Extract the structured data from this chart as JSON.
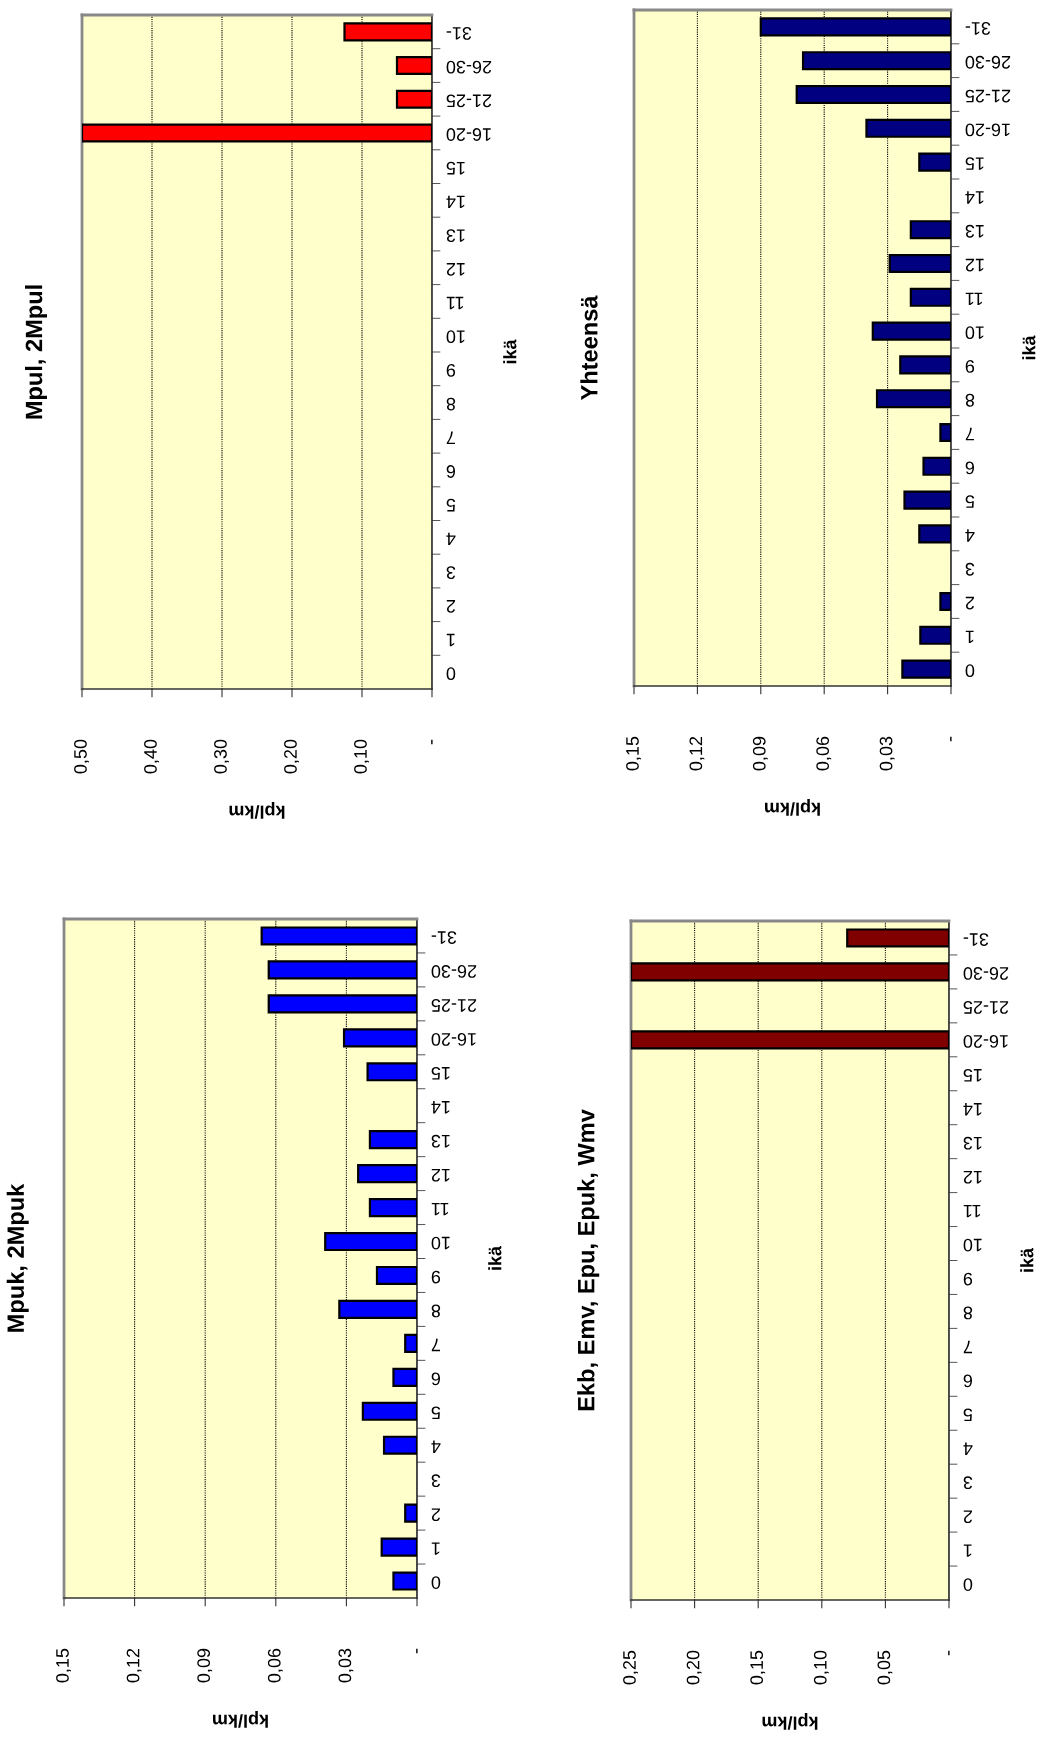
{
  "chart_data": [
    {
      "type": "bar",
      "orientation": "horizontal",
      "title": "Mpuk, 2Mpuk",
      "xlabel": "kpl/km",
      "ylabel": "ikä",
      "categories": [
        "31-",
        "26-30",
        "21-25",
        "16-20",
        "15",
        "14",
        "13",
        "12",
        "11",
        "10",
        "9",
        "8",
        "7",
        "6",
        "5",
        "4",
        "3",
        "2",
        "1",
        "0"
      ],
      "values": [
        0.066,
        0.063,
        0.063,
        0.031,
        0.021,
        null,
        0.02,
        0.025,
        0.02,
        0.039,
        0.017,
        0.033,
        0.005,
        0.01,
        0.023,
        0.014,
        null,
        0.005,
        0.015,
        0.01
      ],
      "color": "#0000ff",
      "xlim": [
        0.15,
        0
      ],
      "xticks": [
        {
          "value": 0,
          "label": "-"
        },
        {
          "value": 0.03,
          "label": "0,03"
        },
        {
          "value": 0.06,
          "label": "0,06"
        },
        {
          "value": 0.09,
          "label": "0,09"
        },
        {
          "value": 0.12,
          "label": "0,12"
        },
        {
          "value": 0.15,
          "label": "0,15"
        }
      ],
      "grid": "x"
    },
    {
      "type": "bar",
      "orientation": "horizontal",
      "title": "Mpul, 2Mpul",
      "xlabel": "kpl/km",
      "ylabel": "ikä",
      "categories": [
        "31-",
        "26-30",
        "21-25",
        "16-20",
        "15",
        "14",
        "13",
        "12",
        "11",
        "10",
        "9",
        "8",
        "7",
        "6",
        "5",
        "4",
        "3",
        "2",
        "1",
        "0"
      ],
      "values": [
        0.125,
        0.05,
        0.05,
        0.5,
        null,
        null,
        null,
        null,
        null,
        null,
        null,
        null,
        null,
        null,
        null,
        null,
        null,
        null,
        null,
        null
      ],
      "color": "#ff0000",
      "xlim": [
        0.5,
        0
      ],
      "xticks": [
        {
          "value": 0,
          "label": "-"
        },
        {
          "value": 0.1,
          "label": "0,10"
        },
        {
          "value": 0.2,
          "label": "0,20"
        },
        {
          "value": 0.3,
          "label": "0,30"
        },
        {
          "value": 0.4,
          "label": "0,40"
        },
        {
          "value": 0.5,
          "label": "0,50"
        }
      ],
      "grid": "x"
    },
    {
      "type": "bar",
      "orientation": "horizontal",
      "title": "Ekb, Emv, Epu, Epuk, Wmv",
      "xlabel": "kpl/km",
      "ylabel": "ikä",
      "categories": [
        "31-",
        "26-30",
        "21-25",
        "16-20",
        "15",
        "14",
        "13",
        "12",
        "11",
        "10",
        "9",
        "8",
        "7",
        "6",
        "5",
        "4",
        "3",
        "2",
        "1",
        "0"
      ],
      "values": [
        0.08,
        0.25,
        null,
        0.25,
        null,
        null,
        null,
        null,
        null,
        null,
        null,
        null,
        null,
        null,
        null,
        null,
        null,
        null,
        null,
        null
      ],
      "color": "#800000",
      "xlim": [
        0.25,
        0
      ],
      "xticks": [
        {
          "value": 0,
          "label": "-"
        },
        {
          "value": 0.05,
          "label": "0,05"
        },
        {
          "value": 0.1,
          "label": "0,10"
        },
        {
          "value": 0.15,
          "label": "0,15"
        },
        {
          "value": 0.2,
          "label": "0,20"
        },
        {
          "value": 0.25,
          "label": "0,25"
        }
      ],
      "grid": "x"
    },
    {
      "type": "bar",
      "orientation": "horizontal",
      "title": "Yhteensä",
      "xlabel": "kpl/km",
      "ylabel": "ikä",
      "categories": [
        "31-",
        "26-30",
        "21-25",
        "16-20",
        "15",
        "14",
        "13",
        "12",
        "11",
        "10",
        "9",
        "8",
        "7",
        "6",
        "5",
        "4",
        "3",
        "2",
        "1",
        "0"
      ],
      "values": [
        0.09,
        0.07,
        0.073,
        0.04,
        0.015,
        null,
        0.019,
        0.029,
        0.019,
        0.037,
        0.024,
        0.035,
        0.005,
        0.013,
        0.022,
        0.015,
        null,
        0.005,
        0.0145,
        0.023
      ],
      "color": "#000080",
      "xlim": [
        0.15,
        0
      ],
      "xticks": [
        {
          "value": 0,
          "label": "-"
        },
        {
          "value": 0.03,
          "label": "0,03"
        },
        {
          "value": 0.06,
          "label": "0,06"
        },
        {
          "value": 0.09,
          "label": "0,09"
        },
        {
          "value": 0.12,
          "label": "0,12"
        },
        {
          "value": 0.15,
          "label": "0,15"
        }
      ],
      "grid": "x"
    }
  ]
}
